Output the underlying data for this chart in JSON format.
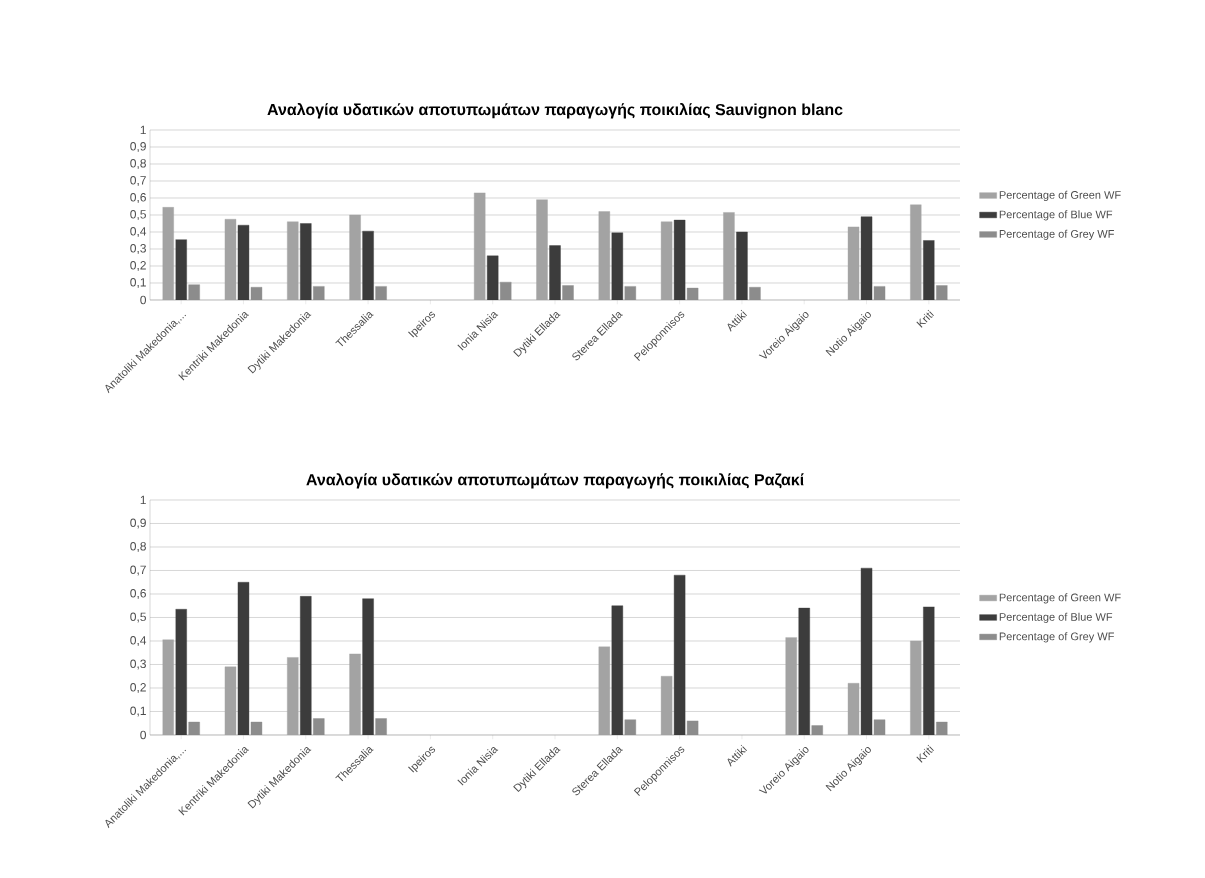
{
  "chart_data": [
    {
      "type": "bar",
      "title": "Αναλογία υδατικών αποτυπωμάτων παραγωγής ποικιλίας Sauvignon blanc",
      "categories": [
        "Anatoliki Makedonia,...",
        "Kentriki Makedonia",
        "Dytiki Makedonia",
        "Thessalia",
        "Ipeiros",
        "Ionia Nisia",
        "Dytiki Ellada",
        "Sterea Ellada",
        "Peloponnisos",
        "Attiki",
        "Voreio Aigaio",
        "Notio Aigaio",
        "Kriti"
      ],
      "series": [
        {
          "name": "Percentage of Green WF",
          "color": "#a3a3a3",
          "values": [
            0.545,
            0.475,
            0.46,
            0.5,
            null,
            0.63,
            0.59,
            0.52,
            0.46,
            0.515,
            null,
            0.43,
            0.56
          ]
        },
        {
          "name": "Percentage of Blue WF",
          "color": "#3c3c3c",
          "values": [
            0.355,
            0.44,
            0.45,
            0.405,
            null,
            0.26,
            0.32,
            0.395,
            0.47,
            0.4,
            null,
            0.49,
            0.35
          ]
        },
        {
          "name": "Percentage of Grey WF",
          "color": "#8c8c8c",
          "values": [
            0.09,
            0.075,
            0.08,
            0.08,
            null,
            0.105,
            0.085,
            0.08,
            0.07,
            0.075,
            null,
            0.08,
            0.085
          ]
        }
      ],
      "ylim": [
        0,
        1
      ],
      "yticks": [
        0,
        {
          "value": 0.1,
          "label": "0,1"
        },
        {
          "value": 0.2,
          "label": "0,2"
        },
        {
          "value": 0.3,
          "label": "0,3"
        },
        {
          "value": 0.4,
          "label": "0,4"
        },
        {
          "value": 0.5,
          "label": "0,5"
        },
        {
          "value": 0.6,
          "label": "0,6"
        },
        {
          "value": 0.7,
          "label": "0,7"
        },
        {
          "value": 0.8,
          "label": "0,8"
        },
        {
          "value": 0.9,
          "label": "0,9"
        },
        1
      ],
      "grid": "y",
      "legend": "right"
    },
    {
      "type": "bar",
      "title": "Αναλογία υδατικών αποτυπωμάτων παραγωγής ποικιλίας Ραζακί",
      "categories": [
        "Anatoliki Makedonia,...",
        "Kentriki Makedonia",
        "Dytiki Makedonia",
        "Thessalia",
        "Ipeiros",
        "Ionia Nisia",
        "Dytiki Ellada",
        "Sterea Ellada",
        "Peloponnisos",
        "Attiki",
        "Voreio Aigaio",
        "Notio Aigaio",
        "Kriti"
      ],
      "series": [
        {
          "name": "Percentage of Green WF",
          "color": "#a3a3a3",
          "values": [
            0.405,
            0.29,
            0.33,
            0.345,
            null,
            null,
            null,
            0.375,
            0.25,
            null,
            0.415,
            0.22,
            0.4
          ]
        },
        {
          "name": "Percentage of Blue WF",
          "color": "#3c3c3c",
          "values": [
            0.535,
            0.65,
            0.59,
            0.58,
            null,
            null,
            null,
            0.55,
            0.68,
            null,
            0.54,
            0.71,
            0.545
          ]
        },
        {
          "name": "Percentage of Grey WF",
          "color": "#8c8c8c",
          "values": [
            0.055,
            0.055,
            0.07,
            0.07,
            null,
            null,
            null,
            0.065,
            0.06,
            null,
            0.04,
            0.065,
            0.055
          ]
        }
      ],
      "ylim": [
        0,
        1
      ],
      "yticks": [
        0,
        {
          "value": 0.1,
          "label": "0,1"
        },
        {
          "value": 0.2,
          "label": "0,2"
        },
        {
          "value": 0.3,
          "label": "0,3"
        },
        {
          "value": 0.4,
          "label": "0,4"
        },
        {
          "value": 0.5,
          "label": "0,5"
        },
        {
          "value": 0.6,
          "label": "0,6"
        },
        {
          "value": 0.7,
          "label": "0,7"
        },
        {
          "value": 0.8,
          "label": "0,8"
        },
        {
          "value": 0.9,
          "label": "0,9"
        },
        1
      ],
      "grid": "y",
      "legend": "right"
    }
  ]
}
